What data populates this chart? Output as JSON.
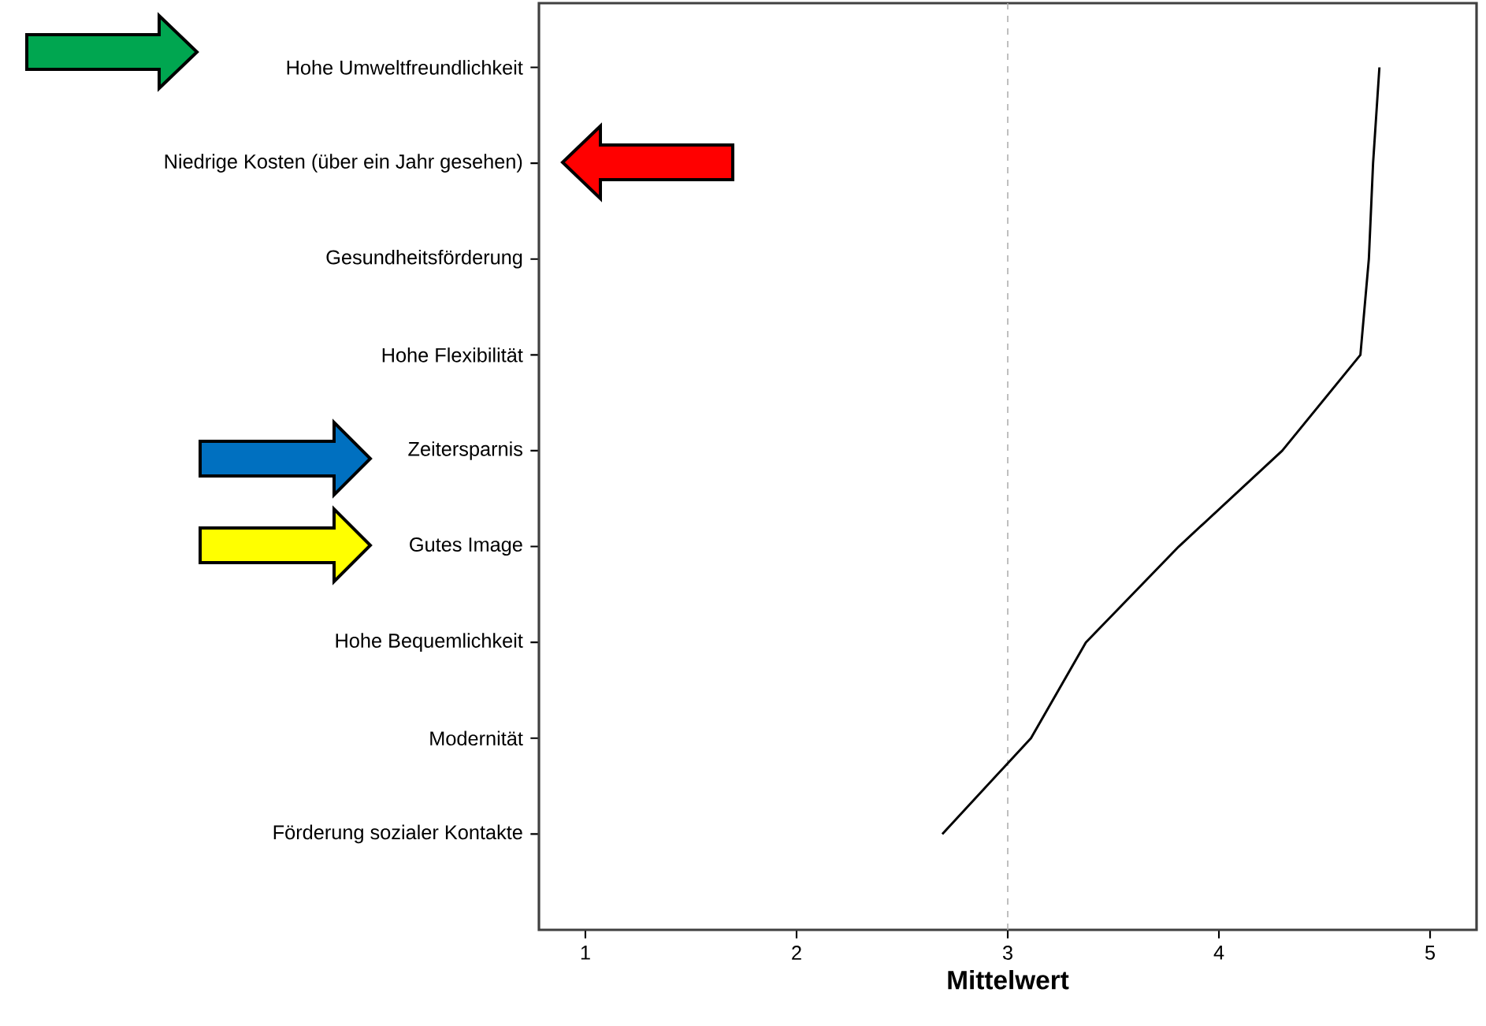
{
  "chart_data": {
    "type": "line",
    "orientation": "horizontal",
    "xlabel": "Mittelwert",
    "color": "#000000",
    "categories": [
      "Hohe Umweltfreundlichkeit",
      "Niedrige Kosten (über ein Jahr gesehen)",
      "Gesundheitsförderung",
      "Hohe Flexibilität",
      "Zeitersparnis",
      "Gutes Image",
      "Hohe Bequemlichkeit",
      "Modernität",
      "Förderung sozialer Kontakte"
    ],
    "values": [
      4.76,
      4.73,
      4.71,
      4.67,
      4.3,
      3.81,
      3.37,
      3.11,
      2.69
    ],
    "xlim": [
      0.78,
      5.22
    ],
    "xticks": [
      1,
      2,
      3,
      4,
      5
    ],
    "ref_lines": [
      {
        "axis": "x",
        "value": 3,
        "color": "#b0b0b0",
        "line_style": "dashed"
      }
    ]
  }
}
